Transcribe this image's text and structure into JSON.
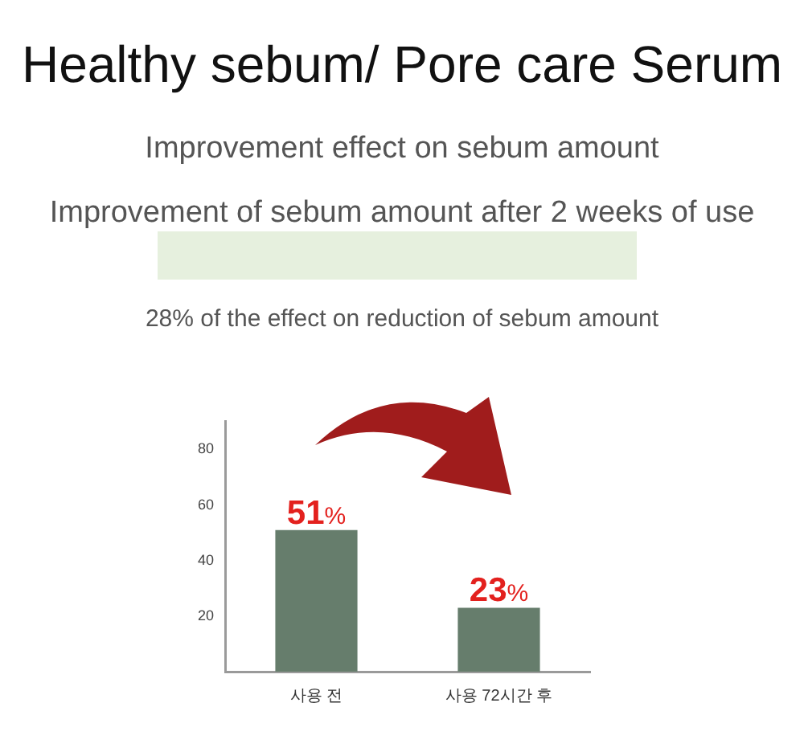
{
  "chart_data": {
    "type": "bar",
    "title": "Healthy sebum/ Pore care Serum",
    "subtitle": "Improvement effect on sebum amount",
    "annotations": [
      "Improvement of sebum amount after 2 weeks of use",
      "28% of the effect on reduction of sebum amount"
    ],
    "categories": [
      "사용 전",
      "사용 72시간 후"
    ],
    "values": [
      51,
      23
    ],
    "color": "#667d6c",
    "value_labels": [
      "51%",
      "23%"
    ],
    "ylim": [
      0,
      90
    ],
    "yticks": [
      20,
      40,
      60,
      80
    ],
    "grid": false,
    "legend": false
  }
}
